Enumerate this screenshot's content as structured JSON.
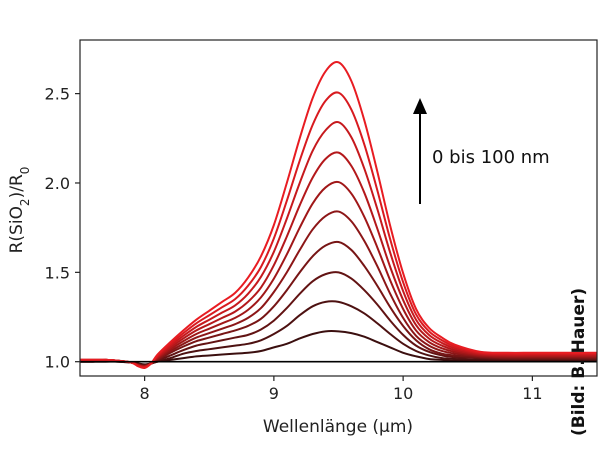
{
  "chart_data": {
    "type": "line",
    "xlabel": "Wellenlänge (µm)",
    "ylabel_parts": [
      "R(SiO",
      "2",
      ")/R",
      "0"
    ],
    "xlim": [
      7.5,
      11.5
    ],
    "ylim": [
      0.92,
      2.8
    ],
    "xticks": [
      8,
      9,
      10,
      11
    ],
    "yticks": [
      1.0,
      1.5,
      2.0,
      2.5
    ],
    "xtick_labels": [
      "8",
      "9",
      "10",
      "11"
    ],
    "ytick_labels": [
      "1.0",
      "1.5",
      "2.0",
      "2.5"
    ],
    "grid": false,
    "annotation": "0 bis 100 nm",
    "credit": "(Bild: B. Hauer)",
    "baseline": {
      "y": 1.0,
      "color": "#000000"
    },
    "x": [
      7.5,
      7.6,
      7.7,
      7.8,
      7.9,
      7.95,
      8.0,
      8.05,
      8.1,
      8.2,
      8.3,
      8.4,
      8.5,
      8.6,
      8.7,
      8.8,
      8.9,
      9.0,
      9.1,
      9.2,
      9.3,
      9.4,
      9.5,
      9.6,
      9.7,
      9.8,
      9.9,
      10.0,
      10.1,
      10.2,
      10.3,
      10.4,
      10.6,
      10.8,
      11.0,
      11.2,
      11.5
    ],
    "series": [
      {
        "color": "#3b0f0f",
        "values": [
          1.0,
          1.0,
          1.0,
          1.0,
          0.995,
          0.99,
          0.985,
          0.99,
          1.0,
          1.01,
          1.02,
          1.03,
          1.035,
          1.04,
          1.045,
          1.05,
          1.06,
          1.08,
          1.1,
          1.13,
          1.155,
          1.17,
          1.17,
          1.16,
          1.14,
          1.11,
          1.08,
          1.05,
          1.03,
          1.015,
          1.01,
          1.005,
          1.005,
          1.005,
          1.005,
          1.005,
          1.005
        ]
      },
      {
        "color": "#4d1111",
        "values": [
          1.0,
          1.0,
          1.005,
          1.0,
          0.995,
          0.985,
          0.98,
          0.99,
          1.0,
          1.02,
          1.045,
          1.06,
          1.07,
          1.08,
          1.09,
          1.1,
          1.12,
          1.155,
          1.2,
          1.26,
          1.31,
          1.335,
          1.335,
          1.31,
          1.27,
          1.215,
          1.155,
          1.1,
          1.06,
          1.035,
          1.02,
          1.015,
          1.01,
          1.01,
          1.01,
          1.01,
          1.01
        ]
      },
      {
        "color": "#621313",
        "values": [
          1.005,
          1.005,
          1.005,
          1.005,
          0.995,
          0.985,
          0.98,
          0.99,
          1.005,
          1.035,
          1.065,
          1.09,
          1.105,
          1.12,
          1.135,
          1.15,
          1.18,
          1.23,
          1.3,
          1.38,
          1.45,
          1.49,
          1.5,
          1.465,
          1.4,
          1.32,
          1.23,
          1.15,
          1.09,
          1.055,
          1.035,
          1.025,
          1.02,
          1.015,
          1.015,
          1.015,
          1.015
        ]
      },
      {
        "color": "#771515",
        "values": [
          1.005,
          1.005,
          1.01,
          1.005,
          0.995,
          0.985,
          0.975,
          0.99,
          1.01,
          1.05,
          1.085,
          1.115,
          1.135,
          1.155,
          1.175,
          1.2,
          1.24,
          1.31,
          1.4,
          1.5,
          1.59,
          1.65,
          1.67,
          1.625,
          1.535,
          1.425,
          1.305,
          1.2,
          1.12,
          1.07,
          1.045,
          1.035,
          1.025,
          1.02,
          1.02,
          1.02,
          1.02
        ]
      },
      {
        "color": "#8c1617",
        "values": [
          1.005,
          1.005,
          1.01,
          1.005,
          0.995,
          0.98,
          0.975,
          0.99,
          1.015,
          1.06,
          1.1,
          1.135,
          1.16,
          1.185,
          1.21,
          1.245,
          1.3,
          1.39,
          1.5,
          1.625,
          1.74,
          1.815,
          1.84,
          1.785,
          1.675,
          1.535,
          1.38,
          1.245,
          1.145,
          1.09,
          1.06,
          1.045,
          1.03,
          1.025,
          1.025,
          1.025,
          1.025
        ]
      },
      {
        "color": "#a01718",
        "values": [
          1.01,
          1.01,
          1.01,
          1.005,
          0.995,
          0.98,
          0.975,
          0.99,
          1.02,
          1.07,
          1.115,
          1.155,
          1.185,
          1.215,
          1.245,
          1.29,
          1.36,
          1.465,
          1.6,
          1.75,
          1.885,
          1.975,
          2.005,
          1.94,
          1.81,
          1.64,
          1.455,
          1.295,
          1.175,
          1.11,
          1.075,
          1.055,
          1.035,
          1.03,
          1.03,
          1.03,
          1.03
        ]
      },
      {
        "color": "#b4181b",
        "values": [
          1.01,
          1.01,
          1.01,
          1.005,
          0.995,
          0.98,
          0.97,
          0.99,
          1.025,
          1.08,
          1.13,
          1.175,
          1.21,
          1.245,
          1.28,
          1.335,
          1.415,
          1.54,
          1.7,
          1.875,
          2.03,
          2.135,
          2.17,
          2.095,
          1.945,
          1.745,
          1.53,
          1.345,
          1.205,
          1.13,
          1.09,
          1.065,
          1.04,
          1.035,
          1.035,
          1.035,
          1.035
        ]
      },
      {
        "color": "#c6191d",
        "values": [
          1.01,
          1.01,
          1.01,
          1.005,
          0.995,
          0.98,
          0.97,
          0.99,
          1.03,
          1.09,
          1.145,
          1.195,
          1.235,
          1.275,
          1.315,
          1.38,
          1.475,
          1.615,
          1.8,
          2.0,
          2.18,
          2.295,
          2.34,
          2.255,
          2.08,
          1.855,
          1.61,
          1.395,
          1.235,
          1.15,
          1.105,
          1.075,
          1.045,
          1.04,
          1.04,
          1.04,
          1.04
        ]
      },
      {
        "color": "#d81a1f",
        "values": [
          1.01,
          1.01,
          1.01,
          1.005,
          0.995,
          0.975,
          0.97,
          0.99,
          1.035,
          1.1,
          1.16,
          1.215,
          1.26,
          1.305,
          1.35,
          1.425,
          1.53,
          1.69,
          1.9,
          2.125,
          2.325,
          2.46,
          2.505,
          2.41,
          2.215,
          1.96,
          1.685,
          1.445,
          1.265,
          1.17,
          1.12,
          1.085,
          1.05,
          1.045,
          1.045,
          1.045,
          1.045
        ]
      },
      {
        "color": "#e81c22",
        "values": [
          1.01,
          1.01,
          1.01,
          1.005,
          0.995,
          0.975,
          0.965,
          0.99,
          1.04,
          1.11,
          1.175,
          1.235,
          1.285,
          1.335,
          1.385,
          1.47,
          1.59,
          1.765,
          2.0,
          2.25,
          2.475,
          2.625,
          2.675,
          2.57,
          2.35,
          2.065,
          1.76,
          1.495,
          1.295,
          1.19,
          1.135,
          1.095,
          1.055,
          1.05,
          1.05,
          1.05,
          1.05
        ]
      }
    ]
  }
}
